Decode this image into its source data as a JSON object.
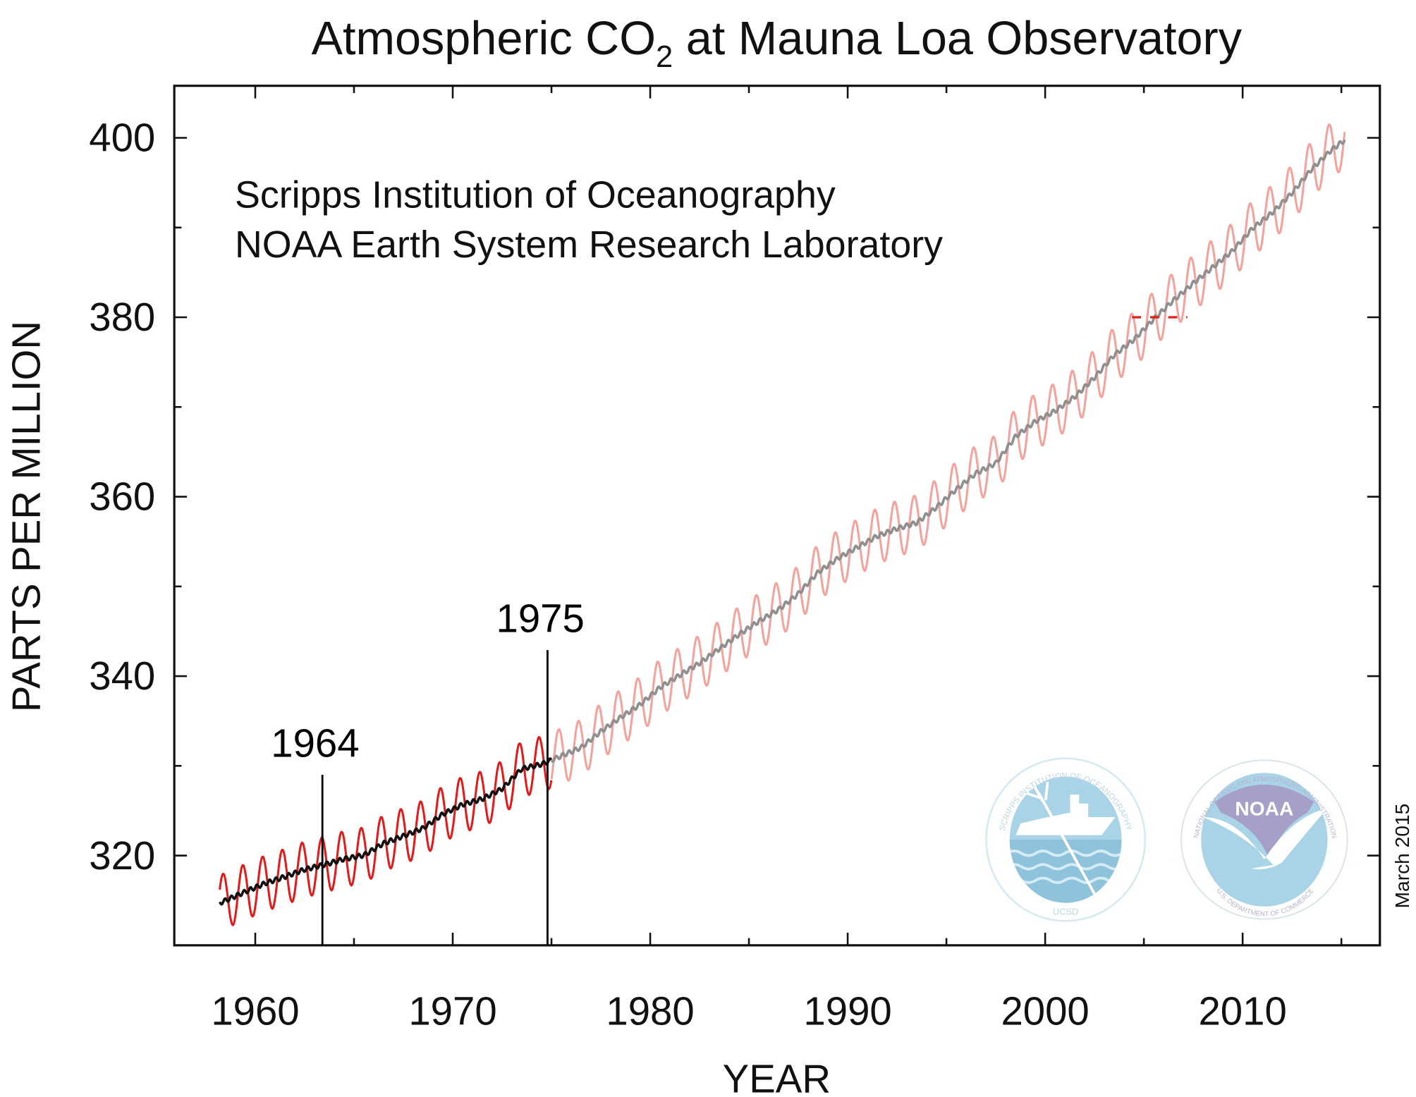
{
  "chart_data": {
    "type": "line",
    "title_main": "Atmospheric CO",
    "title_sub": "2",
    "title_rest": " at Mauna Loa Observatory",
    "xlabel": "YEAR",
    "ylabel": "PARTS PER MILLION",
    "xlim": [
      1955.9,
      2016.95
    ],
    "ylim": [
      310.0,
      405.8
    ],
    "xticks": [
      1960,
      1970,
      1980,
      1990,
      2000,
      2010
    ],
    "xtick_labels": [
      "1960",
      "1970",
      "1980",
      "1990",
      "2000",
      "2010"
    ],
    "yticks": [
      320,
      340,
      360,
      380,
      400
    ],
    "ytick_labels": [
      "320",
      "340",
      "360",
      "380",
      "400"
    ],
    "grid": false,
    "credits": [
      "Scripps Institution of Oceanography",
      "NOAA Earth System Research Laboratory"
    ],
    "date_note": "March 2015",
    "annotations": [
      {
        "label": "1964",
        "x": 1963.4,
        "top_ppm": 329.0
      },
      {
        "label": "1975",
        "x": 1974.8,
        "top_ppm": 342.9
      }
    ],
    "reference_dash": {
      "y": 380,
      "x_range": [
        2004.4,
        2007.2
      ],
      "color": "#e0201c"
    },
    "seasonal_amplitude_ppm": 3.1,
    "split_year": 1975,
    "series": [
      {
        "name": "monthly (before 1975)",
        "color": "#e21b1b",
        "x_range": [
          1958.2,
          1975.0
        ]
      },
      {
        "name": "trend (before 1975)",
        "color": "#111111",
        "x_range": [
          1958.2,
          1975.0
        ]
      },
      {
        "name": "monthly (after 1975)",
        "color": "#f4a29c",
        "x_range": [
          1975.0,
          2015.2
        ]
      },
      {
        "name": "trend (after 1975)",
        "color": "#8f8f8f",
        "x_range": [
          1975.0,
          2015.2
        ]
      }
    ],
    "annual_trend": {
      "years": [
        1958,
        1959,
        1960,
        1961,
        1962,
        1963,
        1964,
        1965,
        1966,
        1967,
        1968,
        1969,
        1970,
        1971,
        1972,
        1973,
        1974,
        1975,
        1976,
        1977,
        1978,
        1979,
        1980,
        1981,
        1982,
        1983,
        1984,
        1985,
        1986,
        1987,
        1988,
        1989,
        1990,
        1991,
        1992,
        1993,
        1994,
        1995,
        1996,
        1997,
        1998,
        1999,
        2000,
        2001,
        2002,
        2003,
        2004,
        2005,
        2006,
        2007,
        2008,
        2009,
        2010,
        2011,
        2012,
        2013,
        2014,
        2015
      ],
      "ppm": [
        315.0,
        315.97,
        316.91,
        317.64,
        318.45,
        318.99,
        319.62,
        320.04,
        321.37,
        322.18,
        323.05,
        324.62,
        325.68,
        326.32,
        327.45,
        329.68,
        330.18,
        331.11,
        332.04,
        333.83,
        335.4,
        336.84,
        338.75,
        340.11,
        341.45,
        343.05,
        344.65,
        346.12,
        347.42,
        349.19,
        351.57,
        353.12,
        354.39,
        355.61,
        356.45,
        357.1,
        358.83,
        360.82,
        362.61,
        363.73,
        366.7,
        368.38,
        369.55,
        371.14,
        373.28,
        375.8,
        377.52,
        379.8,
        381.9,
        383.79,
        385.6,
        387.43,
        389.9,
        391.65,
        393.85,
        396.52,
        398.65,
        400.3
      ]
    }
  },
  "logos": {
    "scripps": {
      "ring_text": "SCRIPPS INSTITUTION OF OCEANOGRAPHY",
      "bottom_text": "UCSD"
    },
    "noaa": {
      "center_text": "NOAA",
      "ring_text": "NATIONAL OCEANIC AND ATMOSPHERIC ADMINISTRATION",
      "bottom_text": "U.S. DEPARTMENT OF COMMERCE"
    }
  },
  "colors": {
    "early_monthly": "#e21b1b",
    "early_trend": "#111111",
    "late_monthly": "#f4a29c",
    "late_trend": "#8f8f8f",
    "logo_blue": "#a9d3e6",
    "logo_purple": "#a6a0c9"
  }
}
